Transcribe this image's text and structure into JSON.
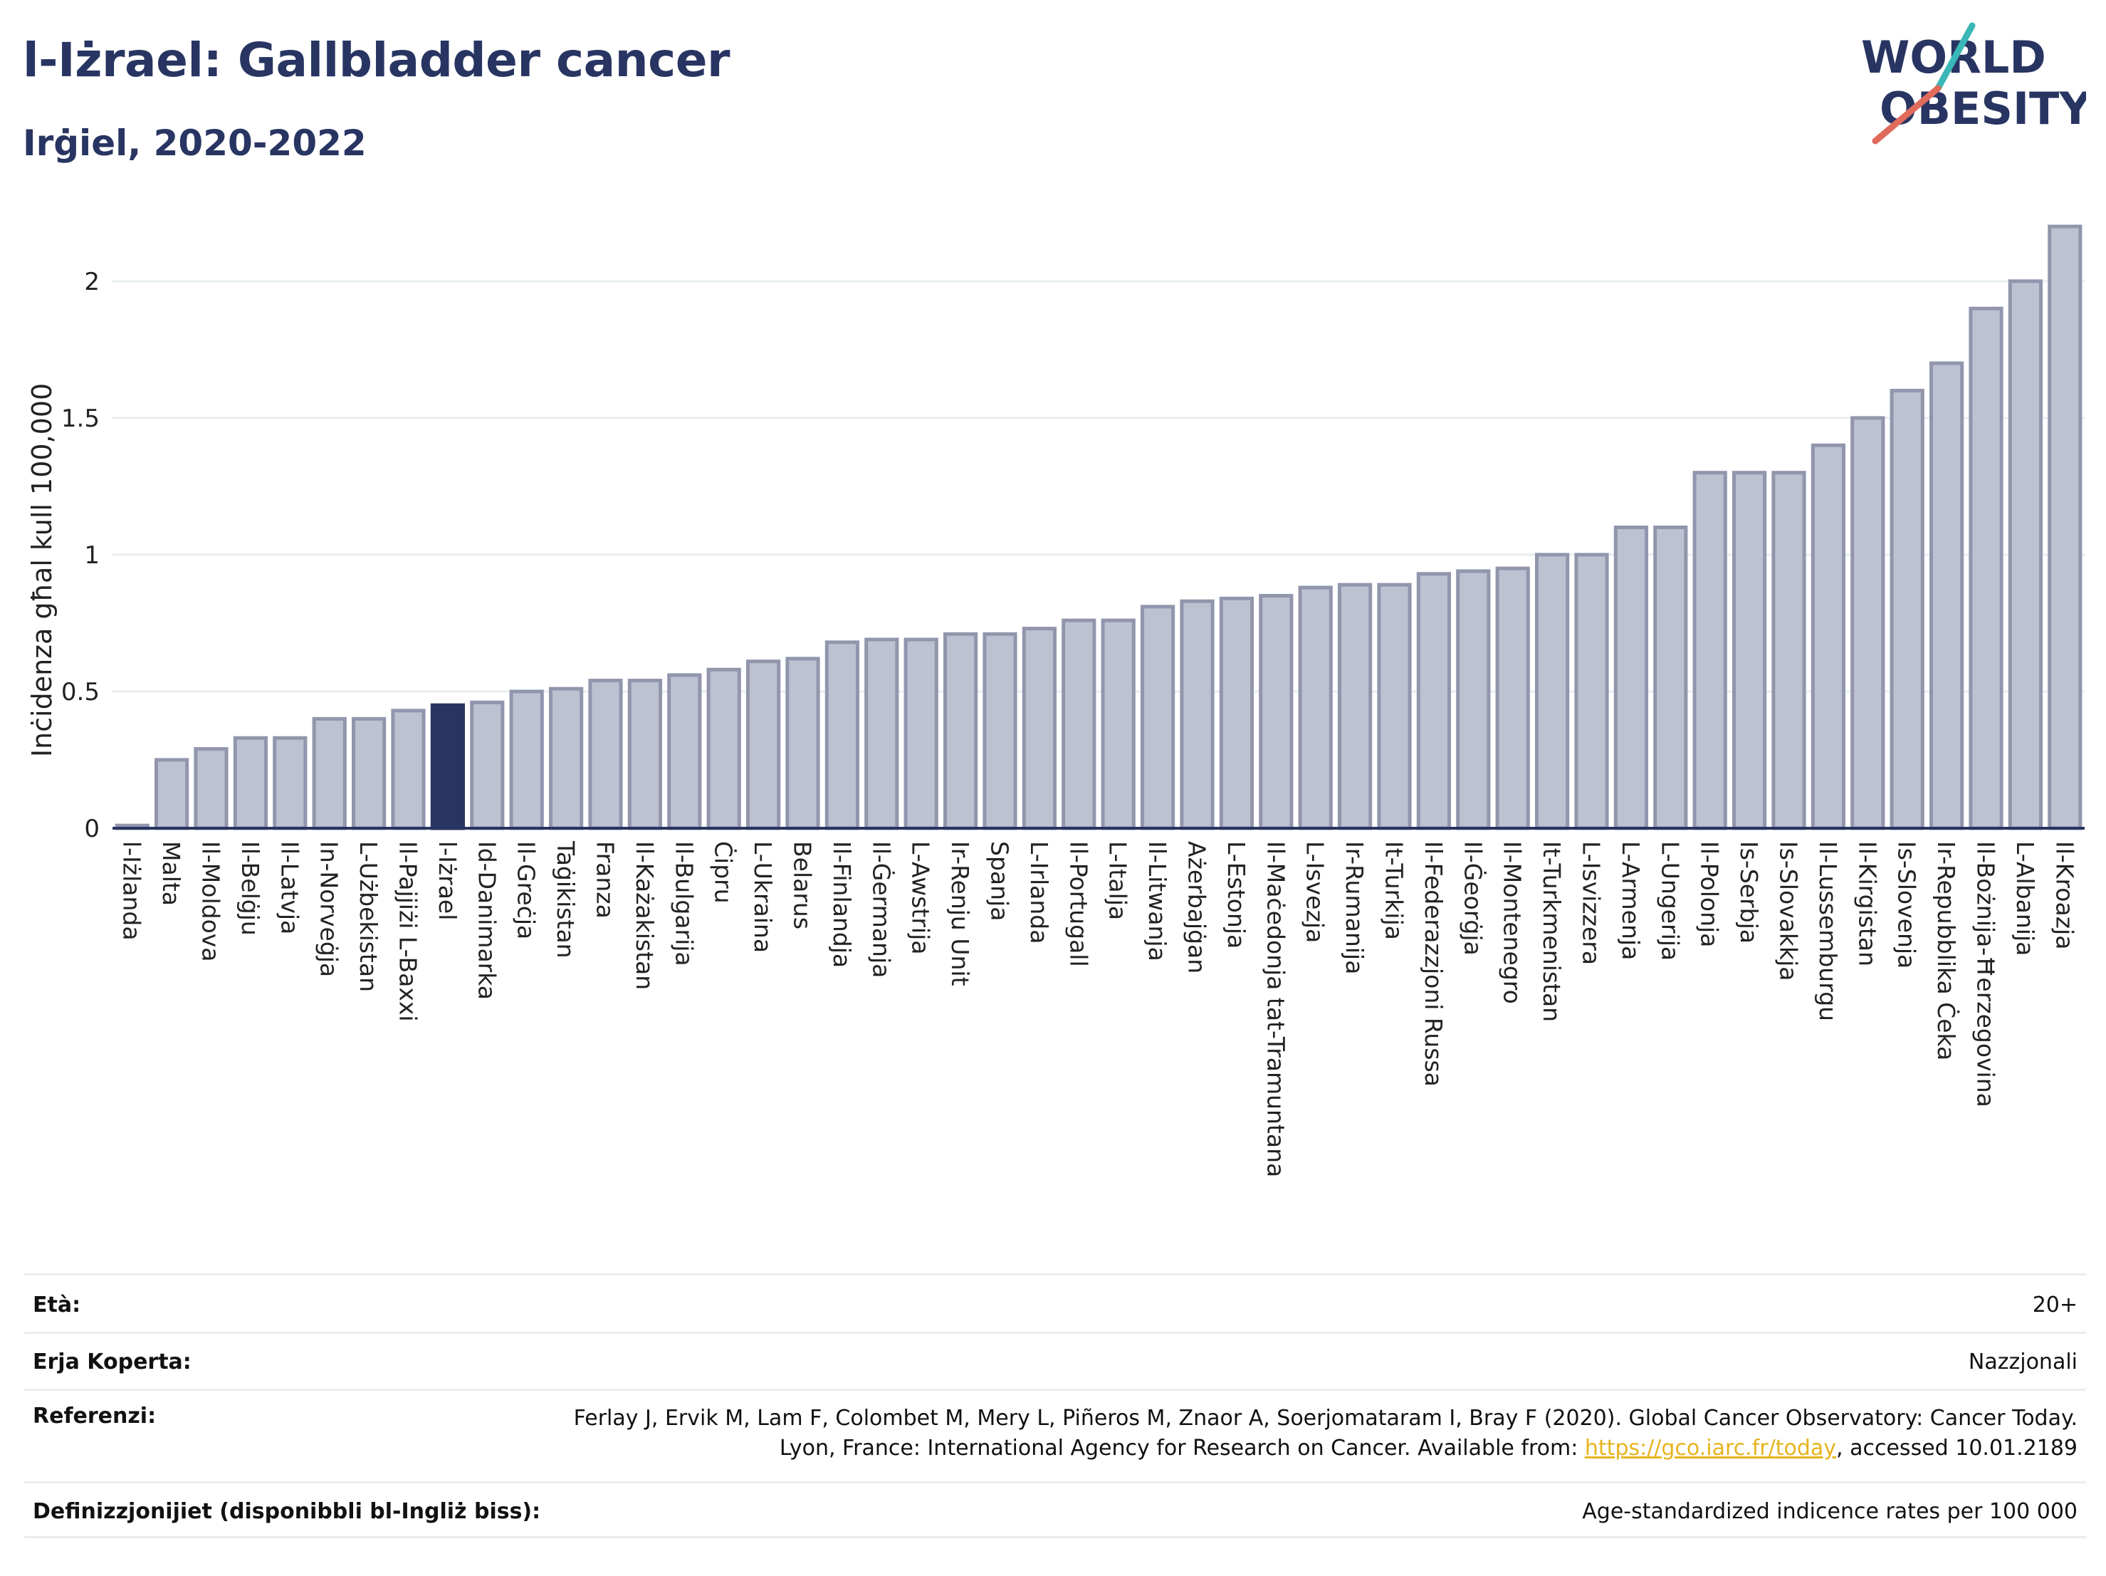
{
  "header": {
    "title": "l-Iżrael: Gallbladder cancer",
    "subtitle": "Irġiel, 2020-2022"
  },
  "logo": {
    "line1": "WORLD",
    "line2": "OBESITY"
  },
  "colors": {
    "highlight": "#283562",
    "bar": "#bdc1d1",
    "bar_stroke": "#9196ad",
    "grid": "#e8edf0",
    "logo_slash_teal": "#3ab7b6",
    "logo_slash_coral": "#e06b5b"
  },
  "chart_data": {
    "type": "bar",
    "ylabel": "Inċidenza għal kull 100,000",
    "ylim": [
      0,
      2.2
    ],
    "yticks": [
      0,
      0.5,
      1,
      1.5,
      2
    ],
    "ytick_labels": [
      "0",
      "0.5",
      "1",
      "1.5",
      "2"
    ],
    "highlight": "l-Iżrael",
    "grid": true,
    "categories": [
      "l-Iżlanda",
      "Malta",
      "Il-Moldova",
      "Il-Belġju",
      "Il-Latvja",
      "In-Norveġja",
      "L-Użbekistan",
      "Il-Pajjiżi L-Baxxi",
      "l-Iżrael",
      "Id-Danimarka",
      "Il-Greċja",
      "Taġikistan",
      "Franza",
      "Il-Każakistan",
      "Il-Bulgarija",
      "Ċipru",
      "L-Ukraina",
      "Belarus",
      "Il-Finlandja",
      "Il-Ġermanja",
      "L-Awstrija",
      "Ir-Renju Unit",
      "Spanja",
      "L-Irlanda",
      "Il-Portugall",
      "L-Italja",
      "Il-Litwanja",
      "Ażerbajġan",
      "L-Estonja",
      "Il-Maċedonja tat-Tramuntana",
      "L-Isvezja",
      "Ir-Rumanija",
      "It-Turkija",
      "Il-Federazzjoni Russa",
      "Il-Ġeorġja",
      "Il-Montenegro",
      "It-Turkmenistan",
      "L-Isvizzera",
      "L-Armenja",
      "L-Ungerija",
      "Il-Polonja",
      "Is-Serbja",
      "Is-Slovakkja",
      "Il-Lussemburgu",
      "Il-Kirgistan",
      "Is-Slovenja",
      "Ir-Repubblika Ċeka",
      "Il-Bożnija-Ħerzegovina",
      "L-Albanija",
      "Il-Kroazja"
    ],
    "values": [
      0.01,
      0.25,
      0.29,
      0.33,
      0.33,
      0.4,
      0.4,
      0.43,
      0.45,
      0.46,
      0.5,
      0.51,
      0.54,
      0.54,
      0.56,
      0.58,
      0.61,
      0.62,
      0.68,
      0.69,
      0.69,
      0.71,
      0.71,
      0.73,
      0.76,
      0.76,
      0.81,
      0.83,
      0.84,
      0.85,
      0.88,
      0.89,
      0.89,
      0.93,
      0.94,
      0.95,
      1.0,
      1.0,
      1.1,
      1.1,
      1.3,
      1.3,
      1.3,
      1.4,
      1.5,
      1.6,
      1.7,
      1.9,
      2.0,
      2.2
    ]
  },
  "footer": {
    "age_label": "Età:",
    "age_value": "20+",
    "coverage_label": "Erja Koperta:",
    "coverage_value": "Nazzjonali",
    "references_label": "Referenzi:",
    "references_text": "Ferlay J, Ervik M, Lam F, Colombet M, Mery L, Piñeros M, Znaor A, Soerjomataram I, Bray F (2020). Global Cancer Observatory: Cancer Today. Lyon, France: International Agency for Research on Cancer. Available from: ",
    "references_link": "https://gco.iarc.fr/today",
    "references_suffix": ", accessed 10.01.2189",
    "definitions_label": "Definizzjonijiet (disponibbli bl-Ingliż biss):",
    "definitions_value": "Age-standardized indicence rates per 100 000"
  }
}
